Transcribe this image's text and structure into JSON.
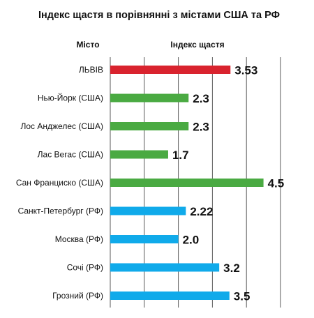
{
  "chart_data": {
    "type": "bar",
    "orientation": "horizontal",
    "title": "Індекс щастя в порівнянні з містами США та РФ",
    "category_header": "Місто",
    "value_header": "Індекс щастя",
    "categories": [
      "ЛЬВІВ",
      "Нью-Йорк (США)",
      "Лос Анджелес (США)",
      "Лас Вегас (США)",
      "Сан Франциско (США)",
      "Санкт-Петербург (РФ)",
      "Москва (РФ)",
      "Сочі (РФ)",
      "Грозний (РФ)"
    ],
    "values": [
      3.53,
      2.3,
      2.3,
      1.7,
      4.5,
      2.22,
      2.0,
      3.2,
      3.5
    ],
    "value_labels": [
      "3.53",
      "2.3",
      "2.3",
      "1.7",
      "4.5",
      "2.22",
      "2.0",
      "3.2",
      "3.5"
    ],
    "groups": [
      "Lviv",
      "USA",
      "USA",
      "USA",
      "USA",
      "RF",
      "RF",
      "RF",
      "RF"
    ],
    "group_colors": {
      "Lviv": "#d9232e",
      "USA": "#4aaa42",
      "RF": "#10aaea"
    },
    "xlim": [
      0,
      5
    ],
    "grid": true,
    "legend": "none"
  }
}
